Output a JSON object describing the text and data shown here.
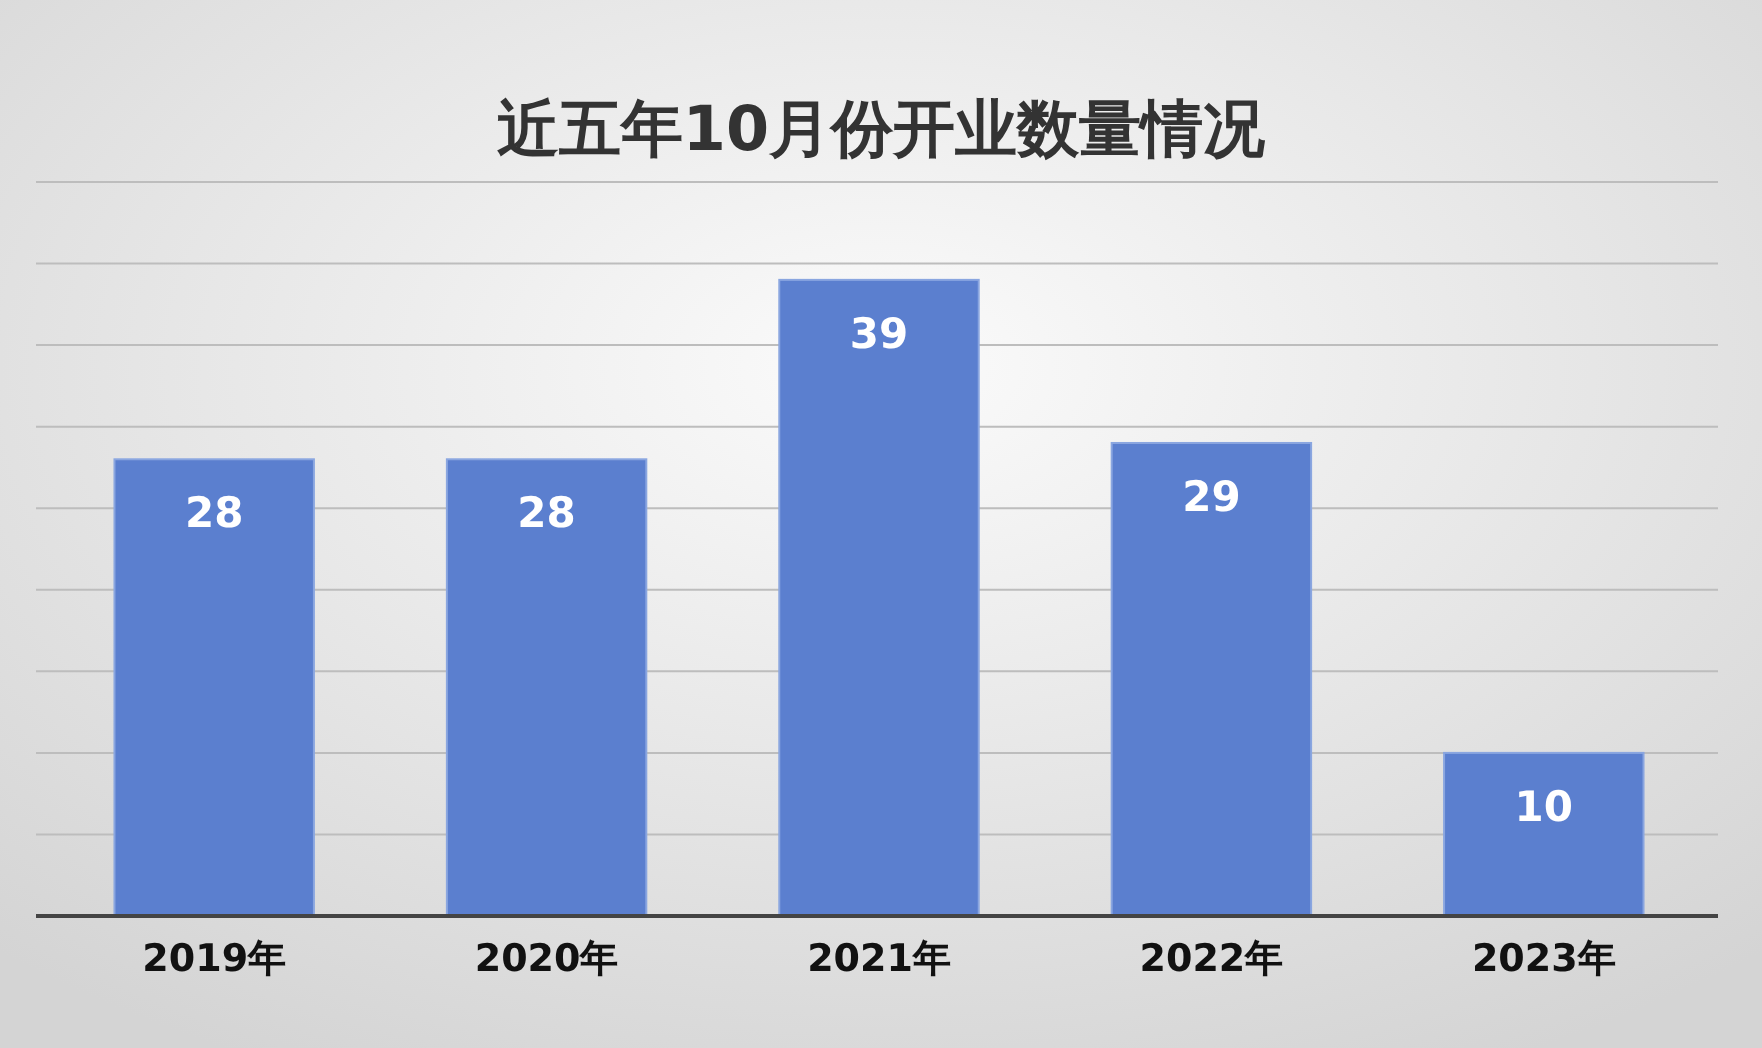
{
  "chart_data": {
    "type": "bar",
    "title": "近五年10月份开业数量情况",
    "categories": [
      "2019年",
      "2020年",
      "2021年",
      "2022年",
      "2023年"
    ],
    "values": [
      28,
      28,
      39,
      29,
      10
    ],
    "color": "#5b7fcf",
    "ylim": [
      0,
      45
    ],
    "yticks": [
      0,
      {
        "value": 5,
        "label": null
      },
      {
        "value": 10,
        "label": null
      },
      {
        "value": 15,
        "label": null
      },
      {
        "value": 20,
        "label": null
      },
      {
        "value": 25,
        "label": null
      },
      {
        "value": 30,
        "label": null
      },
      {
        "value": 35,
        "label": null
      },
      {
        "value": 40,
        "label": null
      },
      {
        "value": 45,
        "label": null
      }
    ],
    "tick_labels": "x",
    "grid": "y",
    "data_labels": true
  }
}
